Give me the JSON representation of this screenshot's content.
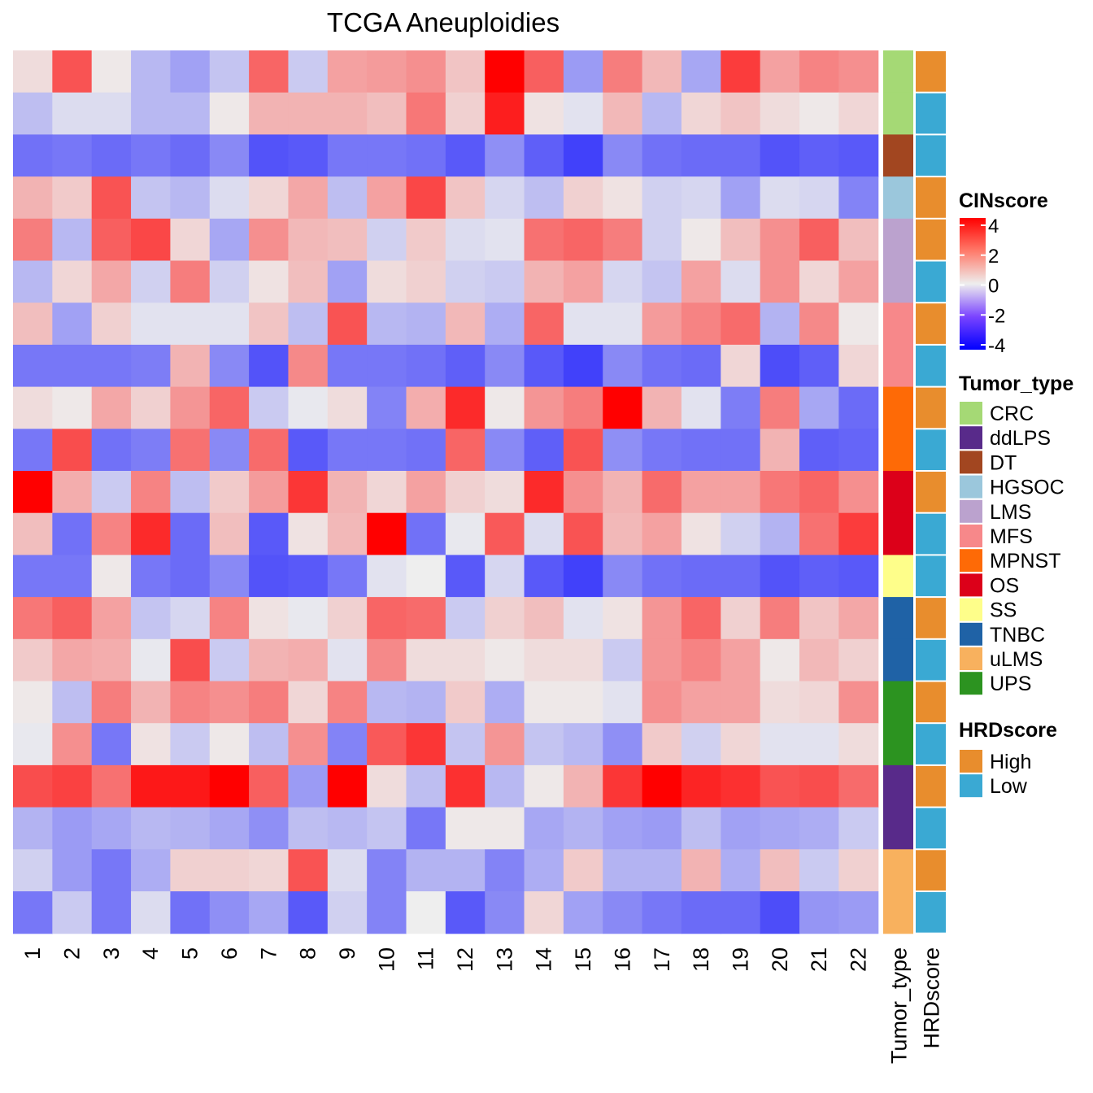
{
  "chart_data": {
    "type": "heatmap",
    "title": "TCGA Aneuploidies",
    "columns": [
      "1",
      "2",
      "3",
      "4",
      "5",
      "6",
      "7",
      "8",
      "9",
      "10",
      "11",
      "12",
      "13",
      "14",
      "15",
      "16",
      "17",
      "18",
      "19",
      "20",
      "21",
      "22"
    ],
    "annotation_labels": [
      "Tumor_type",
      "HRDscore"
    ],
    "values": [
      [
        0.3,
        2.6,
        0.1,
        -0.9,
        -1.3,
        -0.7,
        2.3,
        -0.6,
        1.3,
        1.4,
        1.6,
        0.7,
        4.2,
        2.4,
        -1.4,
        1.9,
        0.9,
        -1.2,
        3.0,
        1.3,
        1.8,
        1.6
      ],
      [
        -0.8,
        -0.3,
        -0.3,
        -0.9,
        -0.9,
        0.1,
        1.0,
        1.0,
        1.0,
        0.8,
        2.0,
        0.5,
        3.5,
        0.2,
        -0.2,
        0.9,
        -0.9,
        0.4,
        0.7,
        0.3,
        0.1,
        0.4
      ],
      [
        -2.1,
        -2.0,
        -2.2,
        -2.0,
        -2.2,
        -1.7,
        -2.6,
        -2.5,
        -2.0,
        -2.0,
        -2.1,
        -2.5,
        -1.6,
        -2.4,
        -2.9,
        -1.7,
        -2.1,
        -2.2,
        -2.2,
        -2.6,
        -2.4,
        -2.5
      ],
      [
        1.0,
        0.6,
        2.6,
        -0.7,
        -0.9,
        -0.3,
        0.4,
        1.2,
        -0.8,
        1.3,
        2.8,
        0.7,
        -0.4,
        -0.8,
        0.5,
        0.2,
        -0.5,
        -0.4,
        -1.3,
        -0.3,
        -0.4,
        -1.8
      ],
      [
        1.9,
        -0.9,
        2.4,
        2.8,
        0.4,
        -1.2,
        1.6,
        0.9,
        0.8,
        -0.5,
        0.6,
        -0.3,
        -0.2,
        2.1,
        2.3,
        1.9,
        -0.5,
        0.1,
        0.8,
        1.6,
        2.4,
        0.8
      ],
      [
        -0.9,
        0.4,
        1.2,
        -0.5,
        1.9,
        -0.5,
        0.2,
        0.8,
        -1.3,
        0.3,
        0.5,
        -0.5,
        -0.6,
        1.0,
        1.3,
        -0.4,
        -0.7,
        1.3,
        -0.3,
        1.6,
        0.4,
        1.3
      ],
      [
        0.8,
        -1.3,
        0.5,
        -0.2,
        -0.2,
        -0.2,
        0.7,
        -0.8,
        2.6,
        -0.9,
        -1.0,
        0.9,
        -1.1,
        2.3,
        -0.2,
        -0.2,
        1.4,
        1.8,
        2.2,
        -1.0,
        1.7,
        0.1
      ],
      [
        -2.0,
        -2.0,
        -2.0,
        -1.9,
        1.0,
        -1.7,
        -2.6,
        1.7,
        -2.0,
        -2.0,
        -2.1,
        -2.4,
        -1.7,
        -2.5,
        -2.9,
        -1.7,
        -2.1,
        -2.2,
        0.4,
        -2.7,
        -2.4,
        0.4
      ],
      [
        0.3,
        0.1,
        1.2,
        0.5,
        1.5,
        2.3,
        -0.6,
        -0.1,
        0.3,
        -1.8,
        1.1,
        3.3,
        0.1,
        1.5,
        1.9,
        4.2,
        1.0,
        -0.2,
        -1.9,
        1.9,
        -1.2,
        -2.2
      ],
      [
        -2.0,
        2.7,
        -2.1,
        -1.9,
        2.1,
        -1.7,
        2.2,
        -2.5,
        -2.0,
        -2.0,
        -2.1,
        2.3,
        -1.7,
        -2.4,
        2.6,
        -1.6,
        -2.0,
        -2.1,
        -2.1,
        1.0,
        -2.4,
        -2.3
      ],
      [
        4.2,
        1.1,
        -0.6,
        1.8,
        -0.8,
        0.6,
        1.4,
        3.1,
        1.0,
        0.4,
        1.3,
        0.5,
        0.3,
        3.3,
        1.6,
        1.0,
        2.2,
        1.3,
        1.3,
        2.0,
        2.3,
        1.6
      ],
      [
        0.8,
        -2.1,
        1.8,
        3.3,
        -2.2,
        0.8,
        -2.5,
        0.2,
        0.9,
        4.3,
        -2.1,
        -0.1,
        2.5,
        -0.3,
        2.6,
        0.9,
        1.3,
        0.2,
        -0.5,
        -1.0,
        2.1,
        3.0
      ],
      [
        -2.0,
        -2.0,
        0.1,
        -2.0,
        -2.2,
        -1.7,
        -2.6,
        -2.5,
        -2.0,
        -0.2,
        0.0,
        -2.5,
        -0.4,
        -2.5,
        -2.9,
        -1.7,
        -2.1,
        -2.2,
        -2.2,
        -2.6,
        -2.4,
        -2.5
      ],
      [
        2.0,
        2.4,
        1.3,
        -0.7,
        -0.4,
        1.8,
        0.2,
        -0.1,
        0.5,
        2.3,
        2.2,
        -0.6,
        0.5,
        0.8,
        -0.2,
        0.2,
        1.5,
        2.3,
        0.5,
        1.9,
        0.7,
        1.2
      ],
      [
        0.6,
        1.2,
        1.1,
        -0.1,
        2.7,
        -0.6,
        1.0,
        1.1,
        -0.2,
        1.7,
        0.3,
        0.3,
        0.1,
        0.3,
        0.3,
        -0.6,
        1.5,
        1.8,
        1.3,
        0.1,
        0.9,
        0.5
      ],
      [
        0.1,
        -0.8,
        1.9,
        1.0,
        1.8,
        1.6,
        1.9,
        0.4,
        1.8,
        -0.9,
        -1.0,
        0.6,
        -1.1,
        0.1,
        0.1,
        -0.2,
        1.6,
        1.3,
        1.3,
        0.3,
        0.4,
        1.6
      ],
      [
        -0.1,
        1.6,
        -2.0,
        0.2,
        -0.6,
        0.1,
        -0.8,
        1.6,
        -1.8,
        2.5,
        3.1,
        -0.7,
        1.5,
        -0.7,
        -0.9,
        -1.6,
        0.6,
        -0.5,
        0.4,
        -0.2,
        -0.2,
        0.3
      ],
      [
        2.7,
        2.9,
        2.1,
        3.6,
        3.6,
        4.0,
        2.4,
        -1.4,
        4.2,
        0.3,
        -0.8,
        3.2,
        -0.9,
        0.1,
        1.0,
        3.1,
        4.1,
        3.4,
        3.2,
        2.6,
        2.7,
        2.2
      ],
      [
        -1.0,
        -1.4,
        -1.2,
        -0.9,
        -1.0,
        -1.2,
        -1.6,
        -0.8,
        -0.9,
        -0.7,
        -2.0,
        0.1,
        0.1,
        -1.2,
        -1.0,
        -1.3,
        -1.4,
        -0.8,
        -1.3,
        -1.2,
        -1.1,
        -0.6
      ],
      [
        -0.5,
        -1.4,
        -2.0,
        -1.1,
        0.5,
        0.5,
        0.4,
        2.6,
        -0.3,
        -1.8,
        -1.0,
        -1.0,
        -1.8,
        -1.1,
        0.6,
        -1.0,
        -1.0,
        1.0,
        -1.1,
        0.8,
        -0.6,
        0.5
      ],
      [
        -2.0,
        -0.6,
        -2.0,
        -0.3,
        -2.1,
        -1.6,
        -1.2,
        -2.5,
        -0.5,
        -1.8,
        0.0,
        -2.5,
        -1.7,
        0.4,
        -1.3,
        -1.7,
        -2.0,
        -2.2,
        -2.2,
        -2.7,
        -1.5,
        -1.4
      ]
    ],
    "tumor_type_by_row": [
      "CRC",
      "CRC",
      "DT",
      "HGSOC",
      "LMS",
      "LMS",
      "MFS",
      "MFS",
      "MPNST",
      "MPNST",
      "OS",
      "OS",
      "SS",
      "TNBC",
      "TNBC",
      "UPS",
      "UPS",
      "ddLPS",
      "ddLPS",
      "uLMS",
      "uLMS"
    ],
    "hrd_by_row": [
      "High",
      "Low",
      "Low",
      "High",
      "High",
      "Low",
      "High",
      "Low",
      "High",
      "Low",
      "High",
      "Low",
      "Low",
      "High",
      "Low",
      "High",
      "Low",
      "High",
      "Low",
      "High",
      "Low"
    ],
    "color_scale": {
      "name": "CINscore",
      "domain": [
        -4,
        4
      ],
      "ticks": [
        "4",
        "2",
        "0",
        "-2",
        "-4"
      ],
      "low": "#0000ff",
      "mid": "#eeeeee",
      "high": "#ff0000"
    },
    "legends": {
      "tumor_type": {
        "title": "Tumor_type",
        "items": [
          {
            "label": "CRC",
            "color": "#a5d975"
          },
          {
            "label": "ddLPS",
            "color": "#582a8a"
          },
          {
            "label": "DT",
            "color": "#a24620"
          },
          {
            "label": "HGSOC",
            "color": "#9bc7dc"
          },
          {
            "label": "LMS",
            "color": "#bba2ce"
          },
          {
            "label": "MFS",
            "color": "#f7888a"
          },
          {
            "label": "MPNST",
            "color": "#fe6a06"
          },
          {
            "label": "OS",
            "color": "#dc0019"
          },
          {
            "label": "SS",
            "color": "#fefe8a"
          },
          {
            "label": "TNBC",
            "color": "#1f62a6"
          },
          {
            "label": "uLMS",
            "color": "#f8b15e"
          },
          {
            "label": "UPS",
            "color": "#2c9320"
          }
        ]
      },
      "hrd": {
        "title": "HRDscore",
        "items": [
          {
            "label": "High",
            "color": "#e88d2d"
          },
          {
            "label": "Low",
            "color": "#3aa9d3"
          }
        ]
      }
    }
  }
}
